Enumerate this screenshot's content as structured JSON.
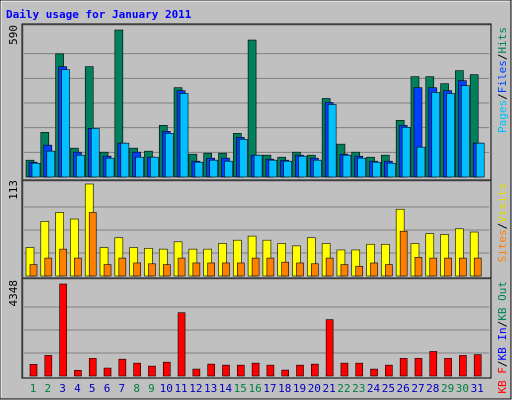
{
  "title": "Daily usage for January 2011",
  "categories": [
    "1",
    "2",
    "3",
    "4",
    "5",
    "6",
    "7",
    "8",
    "9",
    "10",
    "11",
    "12",
    "13",
    "14",
    "15",
    "16",
    "17",
    "18",
    "19",
    "20",
    "21",
    "22",
    "23",
    "24",
    "25",
    "26",
    "27",
    "28",
    "29",
    "30",
    "31"
  ],
  "category_colors": [
    "#008040",
    "#008040",
    "#0000c0",
    "#0000c0",
    "#0000c0",
    "#0000c0",
    "#0000c0",
    "#008040",
    "#008040",
    "#0000c0",
    "#0000c0",
    "#0000c0",
    "#0000c0",
    "#0000c0",
    "#008040",
    "#008040",
    "#0000c0",
    "#0000c0",
    "#0000c0",
    "#0000c0",
    "#0000c0",
    "#008040",
    "#008040",
    "#0000c0",
    "#0000c0",
    "#0000c0",
    "#0000c0",
    "#0000c0",
    "#008040",
    "#008040",
    "#0000c0"
  ],
  "legend_separator": "/",
  "chart_data": [
    {
      "type": "bar",
      "ylim": [
        0,
        590
      ],
      "yticks": [
        590
      ],
      "grid": true,
      "legend": [
        {
          "name": "Pages",
          "color": "#00c0ff"
        },
        {
          "name": "Files",
          "color": "#0040ff"
        },
        {
          "name": "Hits",
          "color": "#00805c"
        }
      ],
      "series": [
        {
          "name": "Hits",
          "color": "#00805c",
          "values": [
            67,
            178,
            491,
            115,
            440,
            99,
            586,
            115,
            103,
            206,
            356,
            91,
            95,
            95,
            174,
            546,
            87,
            79,
            99,
            87,
            313,
            131,
            99,
            79,
            87,
            226,
            400,
            400,
            372,
            424,
            408
          ]
        },
        {
          "name": "Files",
          "color": "#0040ff",
          "values": [
            59,
            127,
            440,
            99,
            194,
            83,
            135,
            99,
            79,
            182,
            344,
            63,
            75,
            75,
            158,
            87,
            71,
            67,
            87,
            75,
            297,
            91,
            83,
            63,
            63,
            206,
            356,
            356,
            344,
            384,
            135
          ]
        },
        {
          "name": "Pages",
          "color": "#00c0ff",
          "values": [
            55,
            103,
            428,
            87,
            194,
            75,
            135,
            79,
            79,
            174,
            333,
            59,
            67,
            63,
            150,
            87,
            67,
            63,
            83,
            67,
            289,
            87,
            75,
            59,
            55,
            198,
            119,
            337,
            333,
            364,
            135
          ]
        }
      ]
    },
    {
      "type": "bar",
      "ylim": [
        0,
        113
      ],
      "yticks": [
        113
      ],
      "grid": true,
      "legend": [
        {
          "name": "Sites",
          "color": "#ff8000"
        },
        {
          "name": "Visits",
          "color": "#e0e000"
        }
      ],
      "series": [
        {
          "name": "Visits",
          "color": "#ffff00",
          "values": [
            35,
            67,
            78,
            70,
            113,
            35,
            47,
            35,
            34,
            33,
            42,
            33,
            33,
            40,
            44,
            49,
            44,
            40,
            37,
            47,
            40,
            32,
            32,
            39,
            39,
            82,
            40,
            52,
            51,
            58,
            54
          ]
        },
        {
          "name": "Sites",
          "color": "#ff8000",
          "values": [
            14,
            22,
            33,
            22,
            78,
            14,
            22,
            16,
            15,
            14,
            22,
            16,
            16,
            16,
            16,
            22,
            22,
            17,
            16,
            15,
            22,
            14,
            12,
            16,
            14,
            55,
            23,
            22,
            22,
            22,
            22
          ]
        }
      ]
    },
    {
      "type": "bar",
      "ylim": [
        0,
        4348
      ],
      "yticks": [
        4348
      ],
      "grid": true,
      "legend": [
        {
          "name": "KB F",
          "color": "#ff0000"
        },
        {
          "name": "KB In",
          "color": "#0000ff"
        },
        {
          "name": "KB Out",
          "color": "#00805c"
        }
      ],
      "series": [
        {
          "name": "KB F",
          "color": "#ff0000",
          "values": [
            551,
            972,
            4348,
            271,
            832,
            374,
            795,
            608,
            467,
            654,
            2992,
            327,
            561,
            514,
            514,
            608,
            514,
            280,
            514,
            561,
            2665,
            608,
            608,
            327,
            514,
            832,
            832,
            1159,
            832,
            972,
            1010
          ]
        }
      ]
    }
  ]
}
